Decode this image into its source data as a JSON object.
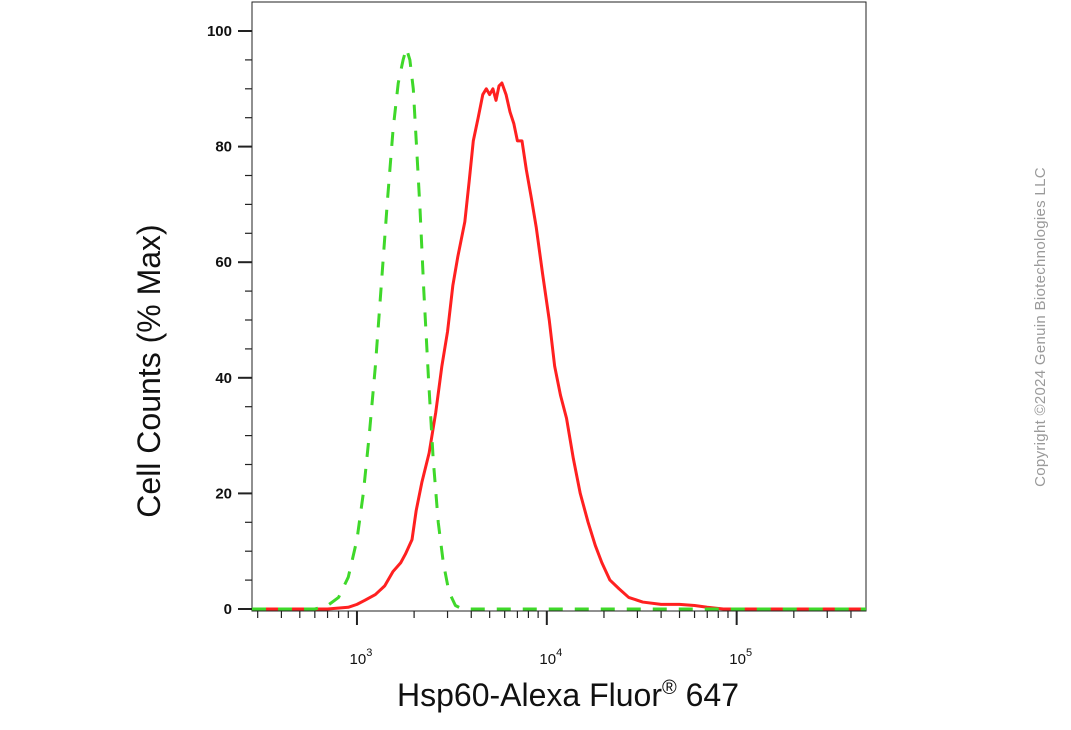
{
  "chart_data": {
    "type": "line",
    "title": "",
    "xlabel_main": "Hsp60-Alexa Fluor",
    "xlabel_sup": "®",
    "xlabel_tail": " 647",
    "ylabel": "Cell Counts (% Max)",
    "x_scale": "log",
    "xlim": [
      280,
      480000
    ],
    "ylim": [
      0,
      105
    ],
    "y_ticks": [
      0,
      20,
      40,
      60,
      80,
      100
    ],
    "x_ticks": [
      {
        "value": 1000,
        "base": "10",
        "exp": "3"
      },
      {
        "value": 10000,
        "base": "10",
        "exp": "4"
      },
      {
        "value": 100000,
        "base": "10",
        "exp": "5"
      }
    ],
    "grid": false,
    "legend": "none",
    "series": [
      {
        "color": "#ff2020",
        "style": "solid",
        "points": [
          [
            280,
            0
          ],
          [
            700,
            0
          ],
          [
            900,
            0.3
          ],
          [
            1000,
            0.8
          ],
          [
            1100,
            1.5
          ],
          [
            1250,
            2.5
          ],
          [
            1400,
            4
          ],
          [
            1550,
            6.5
          ],
          [
            1700,
            8
          ],
          [
            1800,
            9.5
          ],
          [
            1950,
            12
          ],
          [
            2050,
            17
          ],
          [
            2200,
            22
          ],
          [
            2400,
            27
          ],
          [
            2600,
            34
          ],
          [
            2800,
            42
          ],
          [
            3000,
            48
          ],
          [
            3200,
            56
          ],
          [
            3400,
            61
          ],
          [
            3700,
            67
          ],
          [
            3900,
            74
          ],
          [
            4100,
            81
          ],
          [
            4350,
            85
          ],
          [
            4600,
            89
          ],
          [
            4800,
            90
          ],
          [
            5000,
            89
          ],
          [
            5200,
            90
          ],
          [
            5400,
            88
          ],
          [
            5600,
            90.5
          ],
          [
            5800,
            91
          ],
          [
            6100,
            89
          ],
          [
            6400,
            86
          ],
          [
            6700,
            84
          ],
          [
            7000,
            81
          ],
          [
            7400,
            81
          ],
          [
            7800,
            76
          ],
          [
            8300,
            71
          ],
          [
            8800,
            66
          ],
          [
            9500,
            58
          ],
          [
            10300,
            50
          ],
          [
            11000,
            42
          ],
          [
            11800,
            37
          ],
          [
            12700,
            33
          ],
          [
            13800,
            26
          ],
          [
            15000,
            20
          ],
          [
            16500,
            15
          ],
          [
            18000,
            11
          ],
          [
            19500,
            8
          ],
          [
            21500,
            5
          ],
          [
            24000,
            3.5
          ],
          [
            27000,
            2
          ],
          [
            32000,
            1.2
          ],
          [
            40000,
            0.8
          ],
          [
            50000,
            0.8
          ],
          [
            60000,
            0.6
          ],
          [
            70000,
            0.3
          ],
          [
            85000,
            0
          ],
          [
            480000,
            0
          ]
        ]
      },
      {
        "color": "#3fd82a",
        "style": "dashed",
        "points": [
          [
            280,
            0
          ],
          [
            600,
            0
          ],
          [
            700,
            0.6
          ],
          [
            800,
            2
          ],
          [
            900,
            5.5
          ],
          [
            1000,
            12
          ],
          [
            1080,
            20
          ],
          [
            1160,
            30
          ],
          [
            1250,
            42
          ],
          [
            1350,
            57
          ],
          [
            1450,
            71
          ],
          [
            1550,
            83
          ],
          [
            1650,
            91
          ],
          [
            1750,
            95
          ],
          [
            1820,
            97
          ],
          [
            1900,
            95
          ],
          [
            1980,
            90
          ],
          [
            2060,
            80
          ],
          [
            2150,
            69
          ],
          [
            2250,
            55
          ],
          [
            2380,
            40
          ],
          [
            2520,
            26
          ],
          [
            2680,
            15
          ],
          [
            2850,
            8
          ],
          [
            3050,
            3
          ],
          [
            3300,
            0.6
          ],
          [
            3600,
            0
          ],
          [
            480000,
            0
          ]
        ]
      }
    ]
  },
  "copyright": "Copyright ©2024 Genuin Biotechnologies LLC"
}
